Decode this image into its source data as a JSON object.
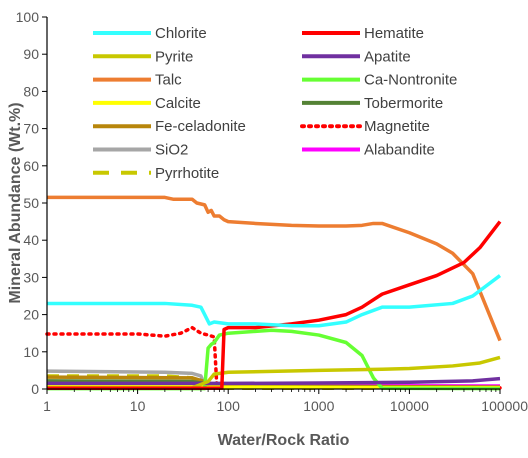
{
  "chart_data": {
    "type": "line",
    "title": "",
    "xlabel": "Water/Rock Ratio",
    "ylabel": "Mineral Abundance (Wt.%)",
    "xscale": "log",
    "xlim": [
      1,
      100000
    ],
    "ylim": [
      0,
      100
    ],
    "xticks": [
      1,
      10,
      100,
      1000,
      10000,
      100000
    ],
    "xtick_labels": [
      "1",
      "10",
      "100",
      "1000",
      "10000",
      "100000"
    ],
    "yticks": [
      0,
      10,
      20,
      30,
      40,
      50,
      60,
      70,
      80,
      90,
      100
    ],
    "ytick_labels": [
      "0",
      "10",
      "20",
      "30",
      "40",
      "50",
      "60",
      "70",
      "80",
      "90",
      "100"
    ],
    "grid": false,
    "legend_position": "top",
    "series": [
      {
        "name": "Chlorite",
        "color": "#33ffff",
        "dash": "solid",
        "points": [
          [
            1,
            23
          ],
          [
            20,
            23
          ],
          [
            40,
            22.5
          ],
          [
            50,
            22
          ],
          [
            55,
            20
          ],
          [
            62,
            17.5
          ],
          [
            70,
            18
          ],
          [
            100,
            17.5
          ],
          [
            200,
            17.5
          ],
          [
            500,
            17
          ],
          [
            1000,
            17
          ],
          [
            2000,
            18
          ],
          [
            3000,
            20
          ],
          [
            5000,
            22
          ],
          [
            10000,
            22
          ],
          [
            30000,
            23
          ],
          [
            50000,
            25
          ],
          [
            100000,
            30.5
          ]
        ]
      },
      {
        "name": "Hematite",
        "color": "#ff0000",
        "dash": "solid",
        "points": [
          [
            1,
            0.2
          ],
          [
            85,
            0.2
          ],
          [
            90,
            16
          ],
          [
            100,
            16.5
          ],
          [
            200,
            16.5
          ],
          [
            500,
            17.5
          ],
          [
            1000,
            18.5
          ],
          [
            2000,
            20
          ],
          [
            3000,
            22
          ],
          [
            5000,
            25.5
          ],
          [
            10000,
            28
          ],
          [
            20000,
            30.5
          ],
          [
            40000,
            34
          ],
          [
            60000,
            38
          ],
          [
            100000,
            45
          ]
        ]
      },
      {
        "name": "Pyrite",
        "color": "#c8c800",
        "dash": "solid",
        "points": [
          [
            1,
            0.3
          ],
          [
            40,
            0.3
          ],
          [
            60,
            2
          ],
          [
            70,
            4
          ],
          [
            100,
            4.5
          ],
          [
            1000,
            5
          ],
          [
            5000,
            5.3
          ],
          [
            10000,
            5.5
          ],
          [
            30000,
            6.2
          ],
          [
            60000,
            7
          ],
          [
            100000,
            8.5
          ]
        ]
      },
      {
        "name": "Apatite",
        "color": "#7030a0",
        "dash": "solid",
        "points": [
          [
            1,
            1.5
          ],
          [
            100,
            1.5
          ],
          [
            1000,
            1.6
          ],
          [
            10000,
            1.8
          ],
          [
            50000,
            2.2
          ],
          [
            100000,
            2.8
          ]
        ]
      },
      {
        "name": "Talc",
        "color": "#ed7d31",
        "dash": "solid",
        "points": [
          [
            1,
            51.5
          ],
          [
            10,
            51.5
          ],
          [
            20,
            51.5
          ],
          [
            25,
            51
          ],
          [
            40,
            51
          ],
          [
            45,
            50
          ],
          [
            55,
            49.5
          ],
          [
            60,
            47.5
          ],
          [
            65,
            48
          ],
          [
            70,
            46.5
          ],
          [
            80,
            46.5
          ],
          [
            90,
            45.5
          ],
          [
            100,
            45
          ],
          [
            200,
            44.5
          ],
          [
            500,
            44
          ],
          [
            1000,
            43.8
          ],
          [
            2000,
            43.8
          ],
          [
            3000,
            44
          ],
          [
            4000,
            44.5
          ],
          [
            5000,
            44.5
          ],
          [
            10000,
            42
          ],
          [
            20000,
            39
          ],
          [
            30000,
            36.5
          ],
          [
            50000,
            31
          ],
          [
            100000,
            13
          ]
        ]
      },
      {
        "name": "Ca-Nontronite",
        "color": "#66ff33",
        "dash": "solid",
        "points": [
          [
            1,
            0.1
          ],
          [
            55,
            0.1
          ],
          [
            60,
            11
          ],
          [
            65,
            12
          ],
          [
            70,
            12.5
          ],
          [
            80,
            14.5
          ],
          [
            100,
            15
          ],
          [
            200,
            15.5
          ],
          [
            300,
            15.8
          ],
          [
            500,
            15.5
          ],
          [
            1000,
            14.5
          ],
          [
            2000,
            12.5
          ],
          [
            3000,
            9
          ],
          [
            4000,
            3
          ],
          [
            5000,
            0.2
          ],
          [
            100000,
            0.1
          ]
        ]
      },
      {
        "name": "Calcite",
        "color": "#ffff00",
        "dash": "solid",
        "points": [
          [
            1,
            0.8
          ],
          [
            30,
            0.8
          ],
          [
            45,
            0.5
          ],
          [
            100000,
            0.3
          ]
        ]
      },
      {
        "name": "Tobermorite",
        "color": "#548235",
        "dash": "solid",
        "points": [
          [
            1,
            2.2
          ],
          [
            40,
            2
          ],
          [
            55,
            1.5
          ],
          [
            60,
            0.5
          ],
          [
            100000,
            0.3
          ]
        ]
      },
      {
        "name": "Fe-celadonite",
        "color": "#b8860b",
        "dash": "solid",
        "points": [
          [
            1,
            3.2
          ],
          [
            40,
            3
          ],
          [
            55,
            2
          ],
          [
            60,
            0.8
          ],
          [
            100000,
            0.5
          ]
        ]
      },
      {
        "name": "Magnetite",
        "color": "#ff0000",
        "dash": "dotted",
        "points": [
          [
            1,
            14.8
          ],
          [
            10,
            14.8
          ],
          [
            20,
            14.2
          ],
          [
            30,
            15
          ],
          [
            40,
            16.5
          ],
          [
            50,
            15
          ],
          [
            60,
            14.5
          ],
          [
            70,
            14
          ],
          [
            75,
            0.5
          ],
          [
            100000,
            0.3
          ]
        ]
      },
      {
        "name": "SiO2",
        "color": "#a6a6a6",
        "dash": "solid",
        "points": [
          [
            1,
            4.8
          ],
          [
            20,
            4.5
          ],
          [
            40,
            4.2
          ],
          [
            50,
            3.5
          ],
          [
            55,
            1
          ],
          [
            60,
            0.5
          ],
          [
            100000,
            0.5
          ]
        ]
      },
      {
        "name": "Alabandite",
        "color": "#ff00ff",
        "dash": "solid",
        "points": [
          [
            1,
            1
          ],
          [
            100,
            1
          ],
          [
            100000,
            0.8
          ]
        ]
      },
      {
        "name": "Pyrrhotite",
        "color": "#c8c800",
        "dash": "dashed",
        "points": [
          [
            1,
            3.5
          ],
          [
            20,
            3.5
          ],
          [
            40,
            3
          ],
          [
            50,
            0.2
          ],
          [
            100000,
            0.2
          ]
        ]
      }
    ]
  }
}
